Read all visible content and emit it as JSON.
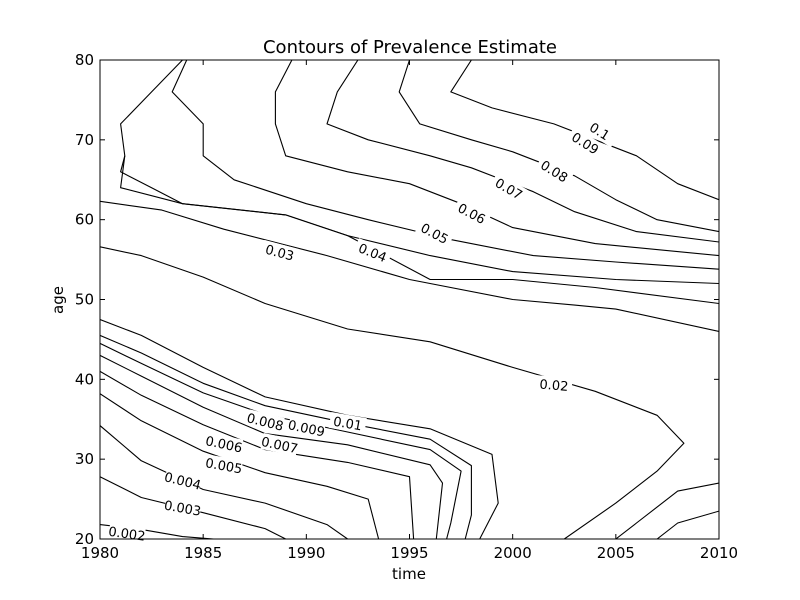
{
  "chart_data": {
    "type": "contour",
    "title": "Contours of Prevalence Estimate",
    "xlabel": "time",
    "ylabel": "age",
    "xlim": [
      1980,
      2010
    ],
    "ylim": [
      20,
      80
    ],
    "x_ticks": [
      "1980",
      "1985",
      "1990",
      "1995",
      "2000",
      "2005",
      "2010"
    ],
    "y_ticks": [
      "20",
      "30",
      "40",
      "50",
      "60",
      "70",
      "80"
    ],
    "line_color": "#000000",
    "contours": [
      {
        "level": 0.002,
        "label": "0.002",
        "label_pos": [
          1981.3,
          20.6
        ],
        "label_angle": 8,
        "points": [
          [
            1980,
            21.8
          ],
          [
            1982,
            21.2
          ],
          [
            1984,
            20.3
          ],
          [
            1985.5,
            20
          ]
        ]
      },
      {
        "level": 0.003,
        "label": "0.003",
        "label_pos": [
          1984,
          23.8
        ],
        "label_angle": 10,
        "points": [
          [
            1980,
            27.8
          ],
          [
            1982,
            25.2
          ],
          [
            1985,
            23.3
          ],
          [
            1988,
            21.3
          ],
          [
            1989,
            20
          ]
        ]
      },
      {
        "level": 0.004,
        "label": "0.004",
        "label_pos": [
          1984,
          27.2
        ],
        "label_angle": 14,
        "points": [
          [
            1980,
            34.2
          ],
          [
            1982,
            29.8
          ],
          [
            1985,
            26.2
          ],
          [
            1988,
            24.5
          ],
          [
            1991,
            21.8
          ],
          [
            1992,
            20
          ]
        ]
      },
      {
        "level": 0.005,
        "label": "0.005",
        "label_pos": [
          1986,
          29.1
        ],
        "label_angle": 10,
        "points": [
          [
            1980,
            38.2
          ],
          [
            1982,
            34.8
          ],
          [
            1985,
            31
          ],
          [
            1988,
            28.3
          ],
          [
            1991,
            26.6
          ],
          [
            1993,
            25
          ],
          [
            1993.5,
            20
          ]
        ]
      },
      {
        "level": 0.006,
        "label": "0.006",
        "label_pos": [
          1986,
          31.8
        ],
        "label_angle": 12,
        "points": [
          [
            1980,
            41
          ],
          [
            1982,
            38
          ],
          [
            1985,
            34.3
          ],
          [
            1988,
            31.2
          ],
          [
            1992,
            29.6
          ],
          [
            1995,
            27.8
          ],
          [
            1995.2,
            20
          ]
        ]
      },
      {
        "level": 0.007,
        "label": "0.007",
        "label_pos": [
          1988.7,
          31.7
        ],
        "label_angle": 12,
        "points": [
          [
            1980,
            43
          ],
          [
            1982,
            40.4
          ],
          [
            1985,
            36.5
          ],
          [
            1988,
            33.2
          ],
          [
            1992,
            31.8
          ],
          [
            1996,
            29.3
          ],
          [
            1996.6,
            27
          ],
          [
            1996.3,
            20
          ]
        ]
      },
      {
        "level": 0.008,
        "label": "0.008",
        "label_pos": [
          1988,
          34.6
        ],
        "label_angle": 14,
        "points": [
          [
            1980,
            44.5
          ],
          [
            1982,
            42
          ],
          [
            1985,
            38.3
          ],
          [
            1988,
            35.6
          ],
          [
            1992,
            33.4
          ],
          [
            1996,
            31.2
          ],
          [
            1997.5,
            28.5
          ],
          [
            1997,
            22
          ],
          [
            1996.8,
            20
          ]
        ]
      },
      {
        "level": 0.009,
        "label": "0.009",
        "label_pos": [
          1990,
          33.8
        ],
        "label_angle": 12,
        "points": [
          [
            1980,
            45.5
          ],
          [
            1982,
            43.3
          ],
          [
            1985,
            39.5
          ],
          [
            1988,
            36.7
          ],
          [
            1992,
            34.5
          ],
          [
            1996,
            32.5
          ],
          [
            1998,
            29.2
          ],
          [
            1998,
            23
          ],
          [
            1997.7,
            20
          ]
        ]
      },
      {
        "level": 0.01,
        "label": "0.01",
        "label_pos": [
          1992,
          34.4
        ],
        "label_angle": 10,
        "points": [
          [
            1980,
            47.5
          ],
          [
            1982,
            45.5
          ],
          [
            1985,
            41.5
          ],
          [
            1988,
            37.8
          ],
          [
            1992,
            35.5
          ],
          [
            1996,
            33.8
          ],
          [
            1999,
            30.6
          ],
          [
            1999.3,
            24.5
          ],
          [
            1998.4,
            20
          ]
        ]
      },
      {
        "level": 0.02,
        "label": "0.02",
        "label_pos": [
          2002,
          39.2
        ],
        "label_angle": 5,
        "points": [
          [
            1980,
            56.6
          ],
          [
            1982,
            55.5
          ],
          [
            1985,
            52.8
          ],
          [
            1988,
            49.5
          ],
          [
            1992,
            46.3
          ],
          [
            1996,
            44.7
          ],
          [
            2000,
            41.5
          ],
          [
            2004,
            38.5
          ],
          [
            2007,
            35.5
          ],
          [
            2008.3,
            32
          ],
          [
            2007,
            28.5
          ],
          [
            2005,
            24.5
          ],
          [
            2002.5,
            20
          ]
        ]
      },
      {
        "level": 0.03,
        "label": "0.03",
        "label_pos": [
          1988.7,
          55.8
        ],
        "label_angle": 15,
        "points": [
          [
            1980,
            62.3
          ],
          [
            1983,
            61.2
          ],
          [
            1986,
            58.8
          ],
          [
            1991,
            55.5
          ],
          [
            1995,
            52.5
          ],
          [
            2000,
            50
          ],
          [
            2003,
            49.3
          ],
          [
            2005,
            48.8
          ],
          [
            2010,
            46
          ],
          [
            2010,
            27
          ],
          [
            2008,
            26
          ],
          [
            2006,
            22
          ],
          [
            2005,
            20
          ]
        ]
      },
      {
        "level": 0.04,
        "label": "0.04",
        "label_pos": [
          1993.2,
          55.8
        ],
        "label_angle": 22,
        "points": [
          [
            1981.2,
            68
          ],
          [
            1981,
            66
          ],
          [
            1982.5,
            64
          ],
          [
            1984,
            62
          ],
          [
            1989,
            60.6
          ],
          [
            1992,
            58
          ],
          [
            1996,
            52.5
          ],
          [
            2000,
            52.5
          ],
          [
            2004,
            51.5
          ],
          [
            2010,
            49.5
          ],
          [
            2010,
            23.5
          ],
          [
            2008,
            22
          ],
          [
            2007,
            20
          ]
        ]
      },
      {
        "level": 0.05,
        "label": "0.05",
        "label_pos": [
          1996.2,
          58.2
        ],
        "label_angle": 28,
        "points": [
          [
            1984,
            80
          ],
          [
            1982.5,
            76
          ],
          [
            1981,
            72
          ],
          [
            1981.2,
            68
          ],
          [
            1981,
            64
          ],
          [
            1984,
            62
          ],
          [
            1989,
            60.6
          ],
          [
            1992,
            58
          ],
          [
            1996,
            55.5
          ],
          [
            2000,
            53.5
          ],
          [
            2005,
            52.5
          ],
          [
            2010,
            52
          ]
        ]
      },
      {
        "level": 0.06,
        "label": "0.06",
        "label_pos": [
          1998,
          60.7
        ],
        "label_angle": 28,
        "points": [
          [
            1984.2,
            80
          ],
          [
            1983.5,
            76
          ],
          [
            1985,
            72
          ],
          [
            1985,
            68
          ],
          [
            1986.5,
            65
          ],
          [
            1990,
            62
          ],
          [
            1993,
            60
          ],
          [
            1997,
            57.5
          ],
          [
            2001,
            55.5
          ],
          [
            2005,
            54.7
          ],
          [
            2010,
            53.8
          ]
        ]
      },
      {
        "level": 0.07,
        "label": "0.07",
        "label_pos": [
          1999.8,
          63.8
        ],
        "label_angle": 30,
        "points": [
          [
            1989.3,
            80
          ],
          [
            1988.5,
            76
          ],
          [
            1988.5,
            72
          ],
          [
            1989,
            68
          ],
          [
            1992,
            66
          ],
          [
            1995,
            64.5
          ],
          [
            1997.5,
            62
          ],
          [
            2000,
            59
          ],
          [
            2004,
            57
          ],
          [
            2010,
            55.5
          ]
        ]
      },
      {
        "level": 0.08,
        "label": "0.08",
        "label_pos": [
          2002,
          66
        ],
        "label_angle": 32,
        "points": [
          [
            1992.5,
            80
          ],
          [
            1991.5,
            76
          ],
          [
            1991,
            72
          ],
          [
            1993,
            70
          ],
          [
            1996,
            68
          ],
          [
            1998,
            66.5
          ],
          [
            2001,
            63.5
          ],
          [
            2003,
            61
          ],
          [
            2006,
            58.5
          ],
          [
            2010,
            57.2
          ]
        ]
      },
      {
        "level": 0.09,
        "label": "0.09",
        "label_pos": [
          2003.5,
          69.5
        ],
        "label_angle": 32,
        "points": [
          [
            1995,
            80
          ],
          [
            1994.5,
            76
          ],
          [
            1995.5,
            72
          ],
          [
            1998,
            70
          ],
          [
            2000,
            68.5
          ],
          [
            2003,
            65.5
          ],
          [
            2005,
            62.5
          ],
          [
            2007,
            60
          ],
          [
            2010,
            58.5
          ]
        ]
      },
      {
        "level": 0.1,
        "label": "0.1",
        "label_pos": [
          2004.2,
          71
        ],
        "label_angle": 32,
        "points": [
          [
            1998,
            80
          ],
          [
            1997,
            76
          ],
          [
            1999,
            74
          ],
          [
            2002,
            72
          ],
          [
            2004,
            70
          ],
          [
            2006,
            68
          ],
          [
            2008,
            64.5
          ],
          [
            2010,
            62.5
          ]
        ]
      }
    ]
  }
}
